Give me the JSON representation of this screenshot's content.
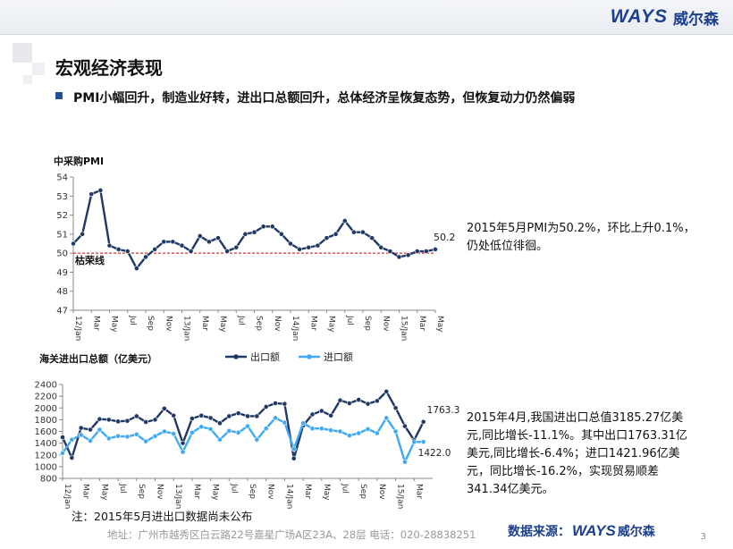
{
  "header": {
    "logo_latin": "WAYS",
    "logo_cn": "威尔森"
  },
  "page_title": "宏观经济表现",
  "bullet": "PMI小幅回升，制造业好转，进出口总额回升，总体经济呈恢复态势，但恢复动力仍然偏弱",
  "notes": {
    "pmi": "2015年5月PMI为50.2%，环比上升0.1%，仍处低位徘徊。",
    "trade": "2015年4月,我国进出口总值3185.27亿美元,同比增长-11.1%。其中出口1763.31亿美元,同比增长-6.4%；进口1421.96亿美元，同比增长-16.2%，实现贸易顺差341.34亿美元。"
  },
  "footnote": "注：2015年5月进出口数据尚未公布",
  "footer": {
    "address": "地址：广州市越秀区白云路22号嘉星广场A区23A、28层   电话：020-28838251",
    "source_label": "数据来源：",
    "source_logo_latin": "WAYS",
    "source_logo_cn": "威尔森",
    "page_number": "3"
  },
  "colors": {
    "brand": "#1d3f8f",
    "pmi_line": "#1f3864",
    "export_line": "#1f3864",
    "import_line": "#3fa9f5",
    "threshold": "#e03030"
  },
  "chart_data": [
    {
      "type": "line",
      "title": "中采购PMI",
      "ylim": [
        47,
        54
      ],
      "yticks": [
        47,
        48,
        49,
        50,
        51,
        52,
        53,
        54
      ],
      "x": [
        "12/Jan",
        "12/Feb",
        "12/Mar",
        "12/Apr",
        "12/May",
        "12/Jun",
        "12/Jul",
        "12/Aug",
        "12/Sep",
        "12/Oct",
        "12/Nov",
        "12/Dec",
        "13/Jan",
        "13/Feb",
        "13/Mar",
        "13/Apr",
        "13/May",
        "13/Jun",
        "13/Jul",
        "13/Aug",
        "13/Sep",
        "13/Oct",
        "13/Nov",
        "13/Dec",
        "14/Jan",
        "14/Feb",
        "14/Mar",
        "14/Apr",
        "14/May",
        "14/Jun",
        "14/Jul",
        "14/Aug",
        "14/Sep",
        "14/Oct",
        "14/Nov",
        "14/Dec",
        "15/Jan",
        "15/Feb",
        "15/Mar",
        "15/Apr",
        "15/May"
      ],
      "x_tick_labels": [
        "12/Jan",
        "Mar",
        "May",
        "Jul",
        "Sep",
        "Nov",
        "13/Jan",
        "Mar",
        "May",
        "Jul",
        "Sep",
        "Nov",
        "14/Jan",
        "Mar",
        "May",
        "Jul",
        "Sep",
        "Nov",
        "15/Jan",
        "Mar",
        "May"
      ],
      "series": [
        {
          "values": [
            50.5,
            51.0,
            53.1,
            53.3,
            50.4,
            50.2,
            50.1,
            49.2,
            49.8,
            50.2,
            50.6,
            50.6,
            50.4,
            50.1,
            50.9,
            50.6,
            50.8,
            50.1,
            50.3,
            51.0,
            51.1,
            51.4,
            51.4,
            51.0,
            50.5,
            50.2,
            50.3,
            50.4,
            50.8,
            51.0,
            51.7,
            51.1,
            51.1,
            50.8,
            50.3,
            50.1,
            49.8,
            49.9,
            50.1,
            50.1,
            50.2
          ]
        }
      ],
      "threshold": {
        "value": 50,
        "label": "枯荣线"
      },
      "end_label": "50.2"
    },
    {
      "type": "line",
      "title": "海关进出口总额（亿美元）",
      "ylim": [
        800,
        2400
      ],
      "yticks": [
        800,
        1000,
        1200,
        1400,
        1600,
        1800,
        2000,
        2200,
        2400
      ],
      "x": [
        "12/Jan",
        "12/Feb",
        "12/Mar",
        "12/Apr",
        "12/May",
        "12/Jun",
        "12/Jul",
        "12/Aug",
        "12/Sep",
        "12/Oct",
        "12/Nov",
        "12/Dec",
        "13/Jan",
        "13/Feb",
        "13/Mar",
        "13/Apr",
        "13/May",
        "13/Jun",
        "13/Jul",
        "13/Aug",
        "13/Sep",
        "13/Oct",
        "13/Nov",
        "13/Dec",
        "14/Jan",
        "14/Feb",
        "14/Mar",
        "14/Apr",
        "14/May",
        "14/Jun",
        "14/Jul",
        "14/Aug",
        "14/Sep",
        "14/Oct",
        "14/Nov",
        "14/Dec",
        "15/Jan",
        "15/Feb",
        "15/Mar",
        "15/Apr"
      ],
      "x_tick_labels": [
        "12/Jan",
        "Mar",
        "May",
        "Jul",
        "Sep",
        "Nov",
        "13/Jan",
        "Mar",
        "May",
        "Jul",
        "Sep",
        "Nov",
        "14/Jan",
        "Mar",
        "May",
        "Jul",
        "Sep",
        "Nov",
        "15/Jan",
        "Mar"
      ],
      "legend": "top",
      "series": [
        {
          "name": "出口额",
          "values": [
            1500,
            1150,
            1660,
            1630,
            1810,
            1800,
            1770,
            1780,
            1860,
            1760,
            1800,
            1990,
            1870,
            1400,
            1820,
            1870,
            1830,
            1740,
            1860,
            1910,
            1860,
            1860,
            2020,
            2080,
            2070,
            1140,
            1700,
            1890,
            1950,
            1870,
            2130,
            2080,
            2140,
            2070,
            2120,
            2280,
            2000,
            1690,
            1450,
            1763.3
          ]
        },
        {
          "name": "进口额",
          "values": [
            1230,
            1460,
            1540,
            1440,
            1630,
            1480,
            1520,
            1510,
            1550,
            1430,
            1520,
            1600,
            1560,
            1250,
            1580,
            1680,
            1640,
            1460,
            1610,
            1580,
            1690,
            1460,
            1650,
            1830,
            1750,
            1300,
            1740,
            1650,
            1650,
            1620,
            1600,
            1530,
            1570,
            1640,
            1570,
            1830,
            1600,
            1080,
            1420,
            1422.0
          ]
        }
      ],
      "end_labels": [
        "1763.3",
        "1422.0"
      ]
    }
  ]
}
